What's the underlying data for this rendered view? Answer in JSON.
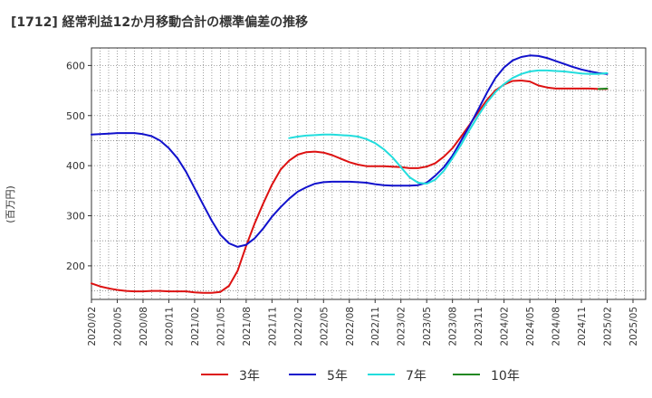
{
  "title": "[1712]  経常利益12か月移動合計の標準偏差の推移",
  "chart_data": {
    "type": "line",
    "title": "[1712]  経常利益12か月移動合計の標準偏差の推移",
    "ylabel": "(百万円)",
    "xlabel": "",
    "ylim": [
      133,
      635
    ],
    "yticks": [
      200,
      300,
      400,
      500,
      600
    ],
    "xticks": [
      "2020/02",
      "2020/05",
      "2020/08",
      "2020/11",
      "2021/02",
      "2021/05",
      "2021/08",
      "2021/11",
      "2022/02",
      "2022/05",
      "2022/08",
      "2022/11",
      "2023/02",
      "2023/05",
      "2023/08",
      "2023/11",
      "2024/02",
      "2024/05",
      "2024/08",
      "2024/11",
      "2025/02",
      "2025/05"
    ],
    "grid": true,
    "legend_position": "bottom",
    "x": [
      "2020/02",
      "2020/03",
      "2020/04",
      "2020/05",
      "2020/06",
      "2020/07",
      "2020/08",
      "2020/09",
      "2020/10",
      "2020/11",
      "2020/12",
      "2021/01",
      "2021/02",
      "2021/03",
      "2021/04",
      "2021/05",
      "2021/06",
      "2021/07",
      "2021/08",
      "2021/09",
      "2021/10",
      "2021/11",
      "2021/12",
      "2022/01",
      "2022/02",
      "2022/03",
      "2022/04",
      "2022/05",
      "2022/06",
      "2022/07",
      "2022/08",
      "2022/09",
      "2022/10",
      "2022/11",
      "2022/12",
      "2023/01",
      "2023/02",
      "2023/03",
      "2023/04",
      "2023/05",
      "2023/06",
      "2023/07",
      "2023/08",
      "2023/09",
      "2023/10",
      "2023/11",
      "2023/12",
      "2024/01",
      "2024/02",
      "2024/03",
      "2024/04",
      "2024/05",
      "2024/06",
      "2024/07",
      "2024/08",
      "2024/09",
      "2024/10",
      "2024/11",
      "2024/12",
      "2025/01",
      "2025/02"
    ],
    "series": [
      {
        "name": "3年",
        "color": "#dd1111",
        "values": [
          165,
          159,
          155,
          152,
          150,
          149,
          149,
          150,
          150,
          149,
          149,
          149,
          147,
          146,
          146,
          148,
          160,
          190,
          240,
          285,
          325,
          362,
          392,
          410,
          422,
          427,
          428,
          426,
          421,
          414,
          407,
          402,
          399,
          399,
          399,
          398,
          397,
          395,
          395,
          398,
          405,
          418,
          435,
          458,
          482,
          507,
          531,
          550,
          562,
          569,
          570,
          568,
          560,
          556,
          554,
          554,
          554,
          554,
          554,
          553,
          553
        ]
      },
      {
        "name": "5年",
        "color": "#1111cc",
        "values": [
          462,
          463,
          464,
          465,
          465,
          465,
          463,
          459,
          450,
          435,
          415,
          388,
          355,
          322,
          290,
          262,
          245,
          238,
          242,
          255,
          275,
          298,
          317,
          334,
          348,
          357,
          364,
          367,
          368,
          368,
          368,
          367,
          366,
          363,
          361,
          360,
          360,
          360,
          361,
          366,
          380,
          397,
          420,
          450,
          480,
          512,
          545,
          575,
          596,
          610,
          617,
          620,
          619,
          615,
          609,
          603,
          597,
          592,
          588,
          585,
          583
        ]
      },
      {
        "name": "7年",
        "color": "#22dddd",
        "values": [
          null,
          null,
          null,
          null,
          null,
          null,
          null,
          null,
          null,
          null,
          null,
          null,
          null,
          null,
          null,
          null,
          null,
          null,
          null,
          null,
          null,
          null,
          null,
          455,
          458,
          460,
          461,
          462,
          462,
          461,
          460,
          458,
          453,
          445,
          433,
          417,
          397,
          377,
          366,
          364,
          372,
          390,
          415,
          442,
          472,
          500,
          526,
          547,
          563,
          575,
          583,
          588,
          590,
          590,
          589,
          588,
          586,
          584,
          583,
          583,
          585
        ]
      },
      {
        "name": "10年",
        "color": "#228822",
        "values": [
          null,
          null,
          null,
          null,
          null,
          null,
          null,
          null,
          null,
          null,
          null,
          null,
          null,
          null,
          null,
          null,
          null,
          null,
          null,
          null,
          null,
          null,
          null,
          null,
          null,
          null,
          null,
          null,
          null,
          null,
          null,
          null,
          null,
          null,
          null,
          null,
          null,
          null,
          null,
          null,
          null,
          null,
          null,
          null,
          null,
          null,
          null,
          null,
          null,
          null,
          null,
          null,
          null,
          null,
          null,
          null,
          null,
          null,
          null,
          553,
          554
        ]
      }
    ]
  }
}
